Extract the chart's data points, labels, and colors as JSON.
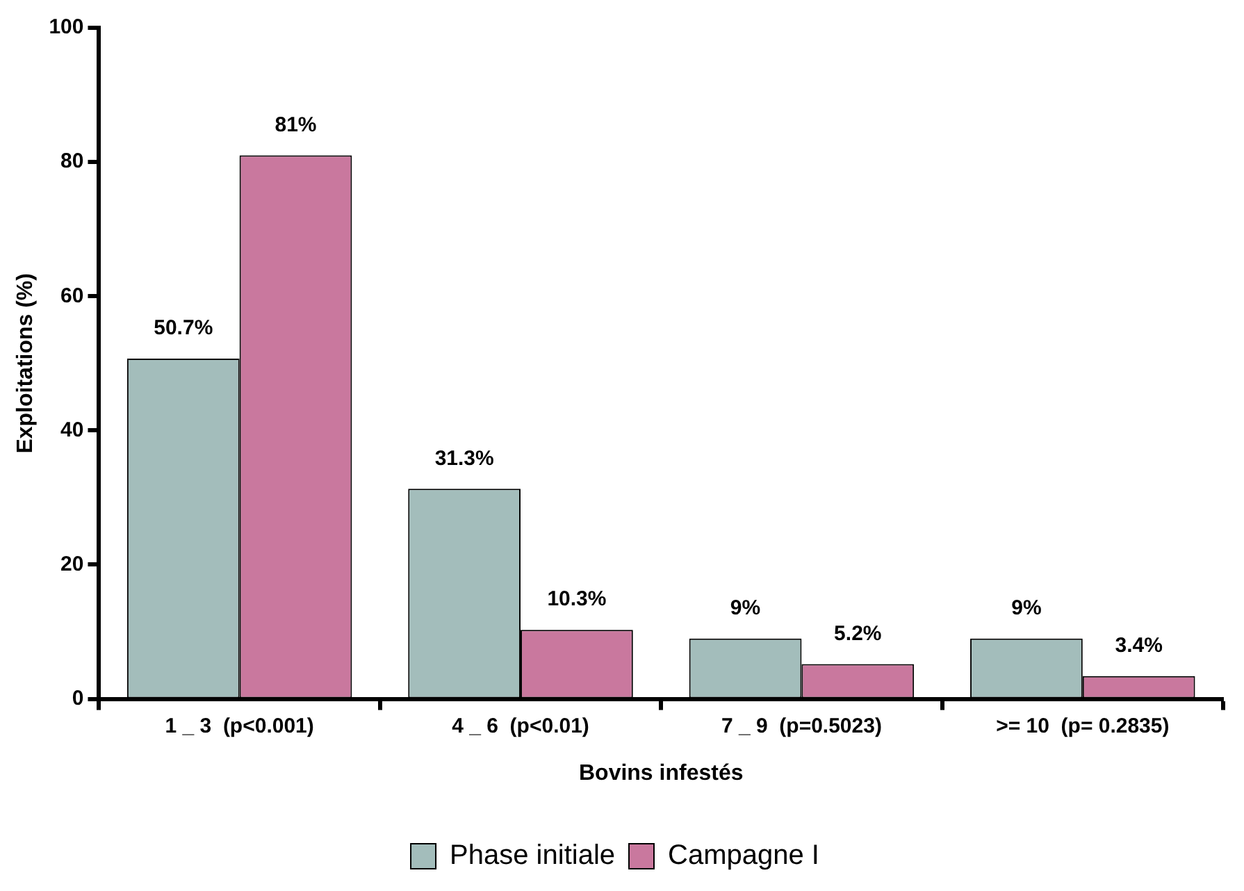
{
  "chart_data": {
    "type": "bar",
    "xlabel": "Bovins infestés",
    "ylabel": "Exploitations (%)",
    "categories": [
      "1 _ 3  (p<0.001)",
      "4 _ 6  (p<0.01)",
      "7 _ 9  (p=0.5023)",
      ">= 10  (p= 0.2835)"
    ],
    "series": [
      {
        "name": "Phase initiale",
        "color": "#a3bdbb",
        "values": [
          50.7,
          31.3,
          9,
          9
        ],
        "value_labels": [
          "50.7%",
          "31.3%",
          "9%",
          "9%"
        ]
      },
      {
        "name": "Campagne I",
        "color": "#c9789e",
        "values": [
          81,
          10.3,
          5.2,
          3.4
        ],
        "value_labels": [
          "81%",
          "10.3%",
          "5.2%",
          "3.4%"
        ]
      }
    ],
    "ylim": [
      0,
      100
    ],
    "yticks": [
      0,
      20,
      40,
      60,
      80,
      100
    ],
    "grid": false,
    "legend": "bottom"
  }
}
